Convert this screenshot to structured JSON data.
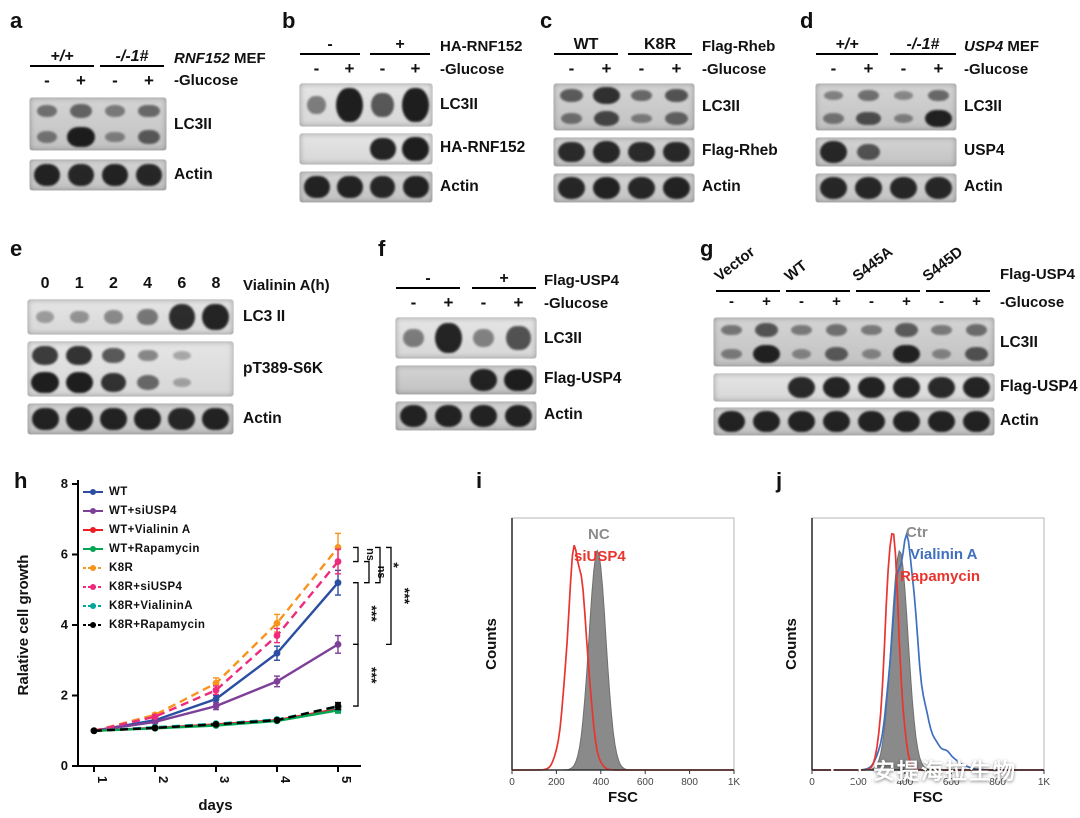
{
  "panels": {
    "a": {
      "label": "a",
      "groups": [
        "+/+",
        "-/-1#"
      ],
      "cell_line_gene": "RNF152",
      "cell_line_suffix": "MEF",
      "signs": [
        "-",
        "+",
        "-",
        "+"
      ],
      "glucose": "-Glucose",
      "row_labels": [
        "LC3II",
        "Actin"
      ],
      "blots": {
        "lc3": [
          [
            0.35,
            0.45,
            0.28,
            0.4
          ],
          [
            0.3,
            0.95,
            0.22,
            0.5
          ]
        ],
        "actin": [
          [
            0.9,
            0.88,
            0.9,
            0.88
          ]
        ]
      }
    },
    "b": {
      "label": "b",
      "groups": [
        "-",
        "+"
      ],
      "top_label": "HA-RNF152",
      "signs": [
        "-",
        "+",
        "-",
        "+"
      ],
      "glucose": "-Glucose",
      "row_labels": [
        "LC3II",
        "HA-RNF152",
        "Actin"
      ],
      "blots": {
        "lc3": [
          [
            0.3,
            0.95,
            0.55,
            0.95
          ]
        ],
        "tag": [
          [
            0,
            0,
            0.9,
            0.95
          ]
        ],
        "actin": [
          [
            0.9,
            0.9,
            0.88,
            0.9
          ]
        ]
      }
    },
    "c": {
      "label": "c",
      "groups": [
        "WT",
        "K8R"
      ],
      "top_label": "Flag-Rheb",
      "signs": [
        "-",
        "+",
        "-",
        "+"
      ],
      "glucose": "-Glucose",
      "row_labels": [
        "LC3II",
        "Flag-Rheb",
        "Actin"
      ],
      "blots": {
        "lc3": [
          [
            0.5,
            0.8,
            0.4,
            0.55
          ],
          [
            0.35,
            0.65,
            0.25,
            0.45
          ]
        ],
        "tag": [
          [
            0.85,
            0.88,
            0.85,
            0.86
          ]
        ],
        "actin": [
          [
            0.88,
            0.9,
            0.88,
            0.9
          ]
        ]
      }
    },
    "d": {
      "label": "d",
      "groups": [
        "+/+",
        "-/-1#"
      ],
      "cell_line_gene": "USP4",
      "cell_line_suffix": "MEF",
      "signs": [
        "-",
        "+",
        "-",
        "+"
      ],
      "glucose": "-Glucose",
      "row_labels": [
        "LC3II",
        "USP4",
        "Actin"
      ],
      "blots": {
        "lc3": [
          [
            0.22,
            0.35,
            0.18,
            0.4
          ],
          [
            0.3,
            0.6,
            0.22,
            0.92
          ]
        ],
        "tag": [
          [
            0.88,
            0.55,
            0,
            0
          ]
        ],
        "actin": [
          [
            0.88,
            0.88,
            0.88,
            0.88
          ]
        ]
      }
    },
    "e": {
      "label": "e",
      "lane_headers": [
        "0",
        "1",
        "2",
        "4",
        "6",
        "8"
      ],
      "top_label": "Vialinin A(h)",
      "row_labels": [
        "LC3 II",
        "pT389-S6K",
        "Actin"
      ],
      "blots": {
        "lc3": [
          [
            0.1,
            0.16,
            0.22,
            0.35,
            0.85,
            0.9
          ]
        ],
        "s6k": [
          [
            0.75,
            0.8,
            0.55,
            0.25,
            0.04,
            0
          ],
          [
            0.95,
            0.95,
            0.8,
            0.45,
            0.06,
            0
          ]
        ],
        "actin": [
          [
            0.9,
            0.92,
            0.9,
            0.9,
            0.88,
            0.9
          ]
        ]
      }
    },
    "f": {
      "label": "f",
      "groups": [
        "-",
        "+"
      ],
      "top_label": "Flag-USP4",
      "signs": [
        "-",
        "+",
        "-",
        "+"
      ],
      "glucose": "-Glucose",
      "row_labels": [
        "LC3II",
        "Flag-USP4",
        "Actin"
      ],
      "blots": {
        "lc3": [
          [
            0.32,
            0.9,
            0.28,
            0.6
          ]
        ],
        "tag": [
          [
            0,
            0,
            0.9,
            0.95
          ]
        ],
        "actin": [
          [
            0.9,
            0.9,
            0.9,
            0.9
          ]
        ]
      }
    },
    "g": {
      "label": "g",
      "groups": [
        "Vector",
        "WT",
        "S445A",
        "S445D"
      ],
      "top_label": "Flag-USP4",
      "signs": [
        "-",
        "+",
        "-",
        "+",
        "-",
        "+",
        "-",
        "+"
      ],
      "glucose": "-Glucose",
      "row_labels": [
        "LC3II",
        "Flag-USP4",
        "Actin"
      ],
      "blots": {
        "lc3": [
          [
            0.3,
            0.55,
            0.28,
            0.35,
            0.28,
            0.5,
            0.28,
            0.38
          ],
          [
            0.25,
            0.92,
            0.2,
            0.5,
            0.2,
            0.9,
            0.2,
            0.55
          ]
        ],
        "tag": [
          [
            0,
            0,
            0.88,
            0.9,
            0.92,
            0.9,
            0.88,
            0.9
          ]
        ],
        "actin": [
          [
            0.9,
            0.9,
            0.9,
            0.9,
            0.9,
            0.9,
            0.9,
            0.9
          ]
        ]
      }
    },
    "h": {
      "label": "h"
    },
    "i": {
      "label": "i"
    },
    "j": {
      "label": "j"
    }
  },
  "chart_data": [
    {
      "type": "line",
      "xlabel": "days",
      "ylabel": "Ralative cell growth",
      "x": [
        1,
        2,
        3,
        4,
        5
      ],
      "ylim": [
        0,
        8
      ],
      "yticks": [
        0,
        2,
        4,
        6,
        8
      ],
      "legend_position": "top-left",
      "series": [
        {
          "name": "WT",
          "color": "#2b4ea2",
          "dash": false,
          "values": [
            1,
            1.3,
            1.9,
            3.2,
            5.2
          ],
          "err": [
            0,
            0,
            0.1,
            0.2,
            0.35
          ]
        },
        {
          "name": "WT+siUSP4",
          "color": "#7d3f98",
          "dash": false,
          "values": [
            1,
            1.25,
            1.7,
            2.4,
            3.45
          ],
          "err": [
            0,
            0,
            0.1,
            0.15,
            0.25
          ]
        },
        {
          "name": "WT+Vialinin A",
          "color": "#ed1c24",
          "dash": false,
          "values": [
            1,
            1.08,
            1.18,
            1.3,
            1.62
          ],
          "err": [
            0,
            0,
            0,
            0,
            0.1
          ]
        },
        {
          "name": "WT+Rapamycin",
          "color": "#00a651",
          "dash": false,
          "values": [
            1,
            1.07,
            1.15,
            1.28,
            1.58
          ],
          "err": [
            0,
            0,
            0,
            0,
            0.08
          ]
        },
        {
          "name": "K8R",
          "color": "#f7941e",
          "dash": true,
          "values": [
            1,
            1.45,
            2.35,
            4.05,
            6.2
          ],
          "err": [
            0,
            0.05,
            0.15,
            0.25,
            0.4
          ]
        },
        {
          "name": "K8R+siUSP4",
          "color": "#ed2a7b",
          "dash": true,
          "values": [
            1,
            1.4,
            2.15,
            3.7,
            5.8
          ],
          "err": [
            0,
            0.05,
            0.12,
            0.2,
            0.35
          ]
        },
        {
          "name": "K8R+VialininA",
          "color": "#00a79b",
          "dash": true,
          "values": [
            1,
            1.1,
            1.2,
            1.32,
            1.68
          ],
          "err": [
            0,
            0,
            0,
            0,
            0.1
          ]
        },
        {
          "name": "K8R+Rapamycin",
          "color": "#000000",
          "dash": true,
          "values": [
            1,
            1.08,
            1.18,
            1.3,
            1.7
          ],
          "err": [
            0,
            0,
            0,
            0,
            0.1
          ]
        }
      ],
      "significance": [
        {
          "label": "ns",
          "from": 6.2,
          "to": 5.8,
          "col": 0
        },
        {
          "label": "ns",
          "from": 5.8,
          "to": 5.2,
          "col": 1
        },
        {
          "label": "*",
          "from": 6.2,
          "to": 5.2,
          "col": 2
        },
        {
          "label": "***",
          "from": 5.2,
          "to": 3.45,
          "col": 0
        },
        {
          "label": "***",
          "from": 6.2,
          "to": 3.45,
          "col": 3
        },
        {
          "label": "***",
          "from": 3.45,
          "to": 1.7,
          "col": 0
        }
      ]
    },
    {
      "type": "histogram",
      "xlabel": "FSC",
      "ylabel": "Counts",
      "xlim": [
        0,
        1000
      ],
      "xticks": [
        "0",
        "200",
        "400",
        "600",
        "800",
        "1K"
      ],
      "legend": [
        {
          "text": "NC",
          "color": "#8c8c8c"
        },
        {
          "text": "siUSP4",
          "color": "#e8352e"
        }
      ],
      "curves": [
        {
          "name": "NC",
          "style": "filled",
          "color": "#8a8a8a",
          "center": 385,
          "sigma": 38,
          "amp": 0.93
        },
        {
          "name": "siUSP4",
          "style": "line",
          "color": "#e8352e",
          "center": 292,
          "sigma": 42,
          "amp": 0.95
        }
      ]
    },
    {
      "type": "histogram",
      "xlabel": "FSC",
      "ylabel": "Counts",
      "xlim": [
        0,
        1000
      ],
      "xticks": [
        "0",
        "200",
        "400",
        "600",
        "800",
        "1K"
      ],
      "legend": [
        {
          "text": "Ctr",
          "color": "#8c8c8c"
        },
        {
          "text": "Vialinin A",
          "color": "#3f6fbf"
        },
        {
          "text": "Rapamycin",
          "color": "#e8352e"
        }
      ],
      "curves": [
        {
          "name": "Ctr",
          "style": "filled",
          "color": "#8a8a8a",
          "center": 378,
          "sigma": 36,
          "amp": 0.93
        },
        {
          "name": "Vialinin A",
          "style": "line",
          "color": "#3f6fbf",
          "center": 398,
          "sigma": 50,
          "amp": 0.97,
          "tail": {
            "center": 530,
            "sigma": 70,
            "amp": 0.1
          }
        },
        {
          "name": "Rapamycin",
          "style": "line",
          "color": "#e8352e",
          "center": 345,
          "sigma": 30,
          "amp": 0.98
        }
      ]
    }
  ],
  "watermark": {
    "text": "安提海拉生物"
  }
}
